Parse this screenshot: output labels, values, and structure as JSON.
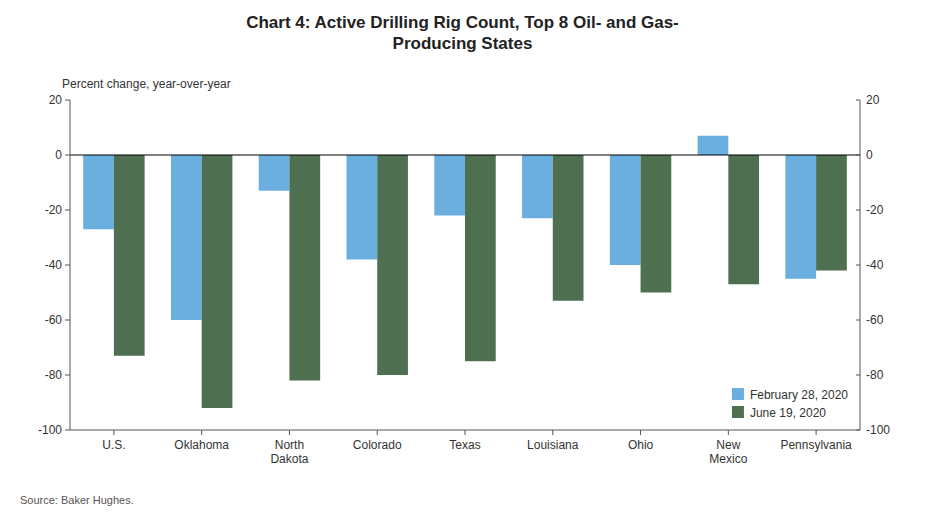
{
  "chart_data": {
    "type": "bar",
    "title": "Chart 4: Active Drilling Rig Count, Top 8 Oil- and Gas-\nProducing States",
    "y_label": "Percent change, year-over-year",
    "source": "Source: Baker Hughes.",
    "categories": [
      "U.S.",
      "Oklahoma",
      "North\nDakota",
      "Colorado",
      "Texas",
      "Louisiana",
      "Ohio",
      "New\nMexico",
      "Pennsylvania"
    ],
    "series": [
      {
        "name": "February 28, 2020",
        "color": "#6AAFE0",
        "values": [
          -27,
          -60,
          -13,
          -38,
          -22,
          -23,
          -40,
          7,
          -45
        ]
      },
      {
        "name": "June 19, 2020",
        "color": "#4E7050",
        "values": [
          -73,
          -92,
          -82,
          -80,
          -75,
          -53,
          -50,
          -47,
          -42
        ]
      }
    ],
    "ylim": [
      -100,
      20
    ],
    "yticks": [
      -100,
      -80,
      -60,
      -40,
      -20,
      0,
      20
    ],
    "grid": false,
    "legend": "lower right"
  }
}
